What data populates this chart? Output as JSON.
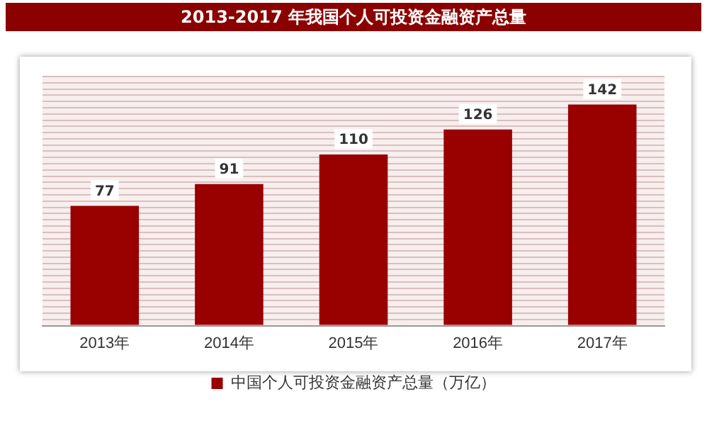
{
  "chart_data": {
    "type": "bar",
    "title": "2013-2017 年我国个人可投资金融资产总量",
    "categories": [
      "2013年",
      "2014年",
      "2015年",
      "2016年",
      "2017年"
    ],
    "series": [
      {
        "name": "中国个人可投资金融资产总量（万亿）",
        "color": "#990000",
        "values": [
          77,
          91,
          110,
          126,
          142
        ]
      }
    ],
    "ylim": [
      0,
      160
    ],
    "yticks": [
      {
        "value": 0,
        "label": null
      },
      {
        "value": 4,
        "label": null
      },
      {
        "value": 8,
        "label": null
      },
      {
        "value": 12,
        "label": null
      },
      {
        "value": 16,
        "label": null
      },
      {
        "value": 20,
        "label": null
      },
      {
        "value": 24,
        "label": null
      },
      {
        "value": 28,
        "label": null
      },
      {
        "value": 32,
        "label": null
      },
      {
        "value": 36,
        "label": null
      },
      {
        "value": 40,
        "label": null
      },
      {
        "value": 44,
        "label": null
      },
      {
        "value": 48,
        "label": null
      },
      {
        "value": 52,
        "label": null
      },
      {
        "value": 56,
        "label": null
      },
      {
        "value": 60,
        "label": null
      },
      {
        "value": 64,
        "label": null
      },
      {
        "value": 68,
        "label": null
      },
      {
        "value": 72,
        "label": null
      },
      {
        "value": 76,
        "label": null
      },
      {
        "value": 80,
        "label": null
      },
      {
        "value": 84,
        "label": null
      },
      {
        "value": 88,
        "label": null
      },
      {
        "value": 92,
        "label": null
      },
      {
        "value": 96,
        "label": null
      },
      {
        "value": 100,
        "label": null
      },
      {
        "value": 104,
        "label": null
      },
      {
        "value": 108,
        "label": null
      },
      {
        "value": 112,
        "label": null
      },
      {
        "value": 116,
        "label": null
      },
      {
        "value": 120,
        "label": null
      },
      {
        "value": 124,
        "label": null
      },
      {
        "value": 128,
        "label": null
      },
      {
        "value": 132,
        "label": null
      },
      {
        "value": 136,
        "label": null
      },
      {
        "value": 140,
        "label": null
      },
      {
        "value": 144,
        "label": null
      },
      {
        "value": 148,
        "label": null
      },
      {
        "value": 152,
        "label": null
      },
      {
        "value": 156,
        "label": null
      },
      {
        "value": 160,
        "label": null
      }
    ],
    "grid": "y",
    "tick_labels": "x",
    "data_labels": true,
    "legend": "bottom"
  }
}
